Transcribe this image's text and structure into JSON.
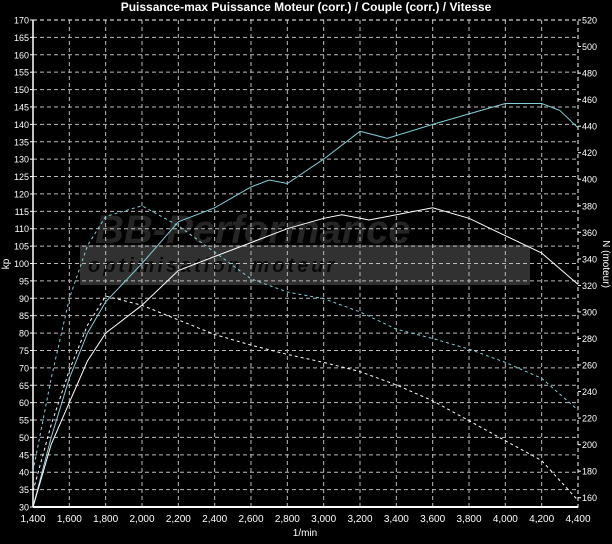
{
  "chart_data": {
    "type": "line",
    "title": "Puissance-max Puissance Moteur (corr.) / Couple (corr.) / Vitesse",
    "xlabel": "1/min",
    "ylabel": "kp",
    "ylabel_right": "N (moteur)",
    "xlim": [
      1400,
      4400
    ],
    "ylim": [
      30,
      170
    ],
    "ylim_right": [
      153,
      520
    ],
    "x_ticks": [
      1400,
      1600,
      1800,
      2000,
      2200,
      2400,
      2600,
      2800,
      3000,
      3200,
      3400,
      3600,
      3800,
      4000,
      4200,
      4400
    ],
    "x_tick_labels": [
      "1,400",
      "1,600",
      "1,800",
      "2,000",
      "2,200",
      "2,400",
      "2,600",
      "2,800",
      "3,000",
      "3,200",
      "3,400",
      "3,600",
      "3,800",
      "4,000",
      "4,200",
      "4,400"
    ],
    "y_ticks": [
      30,
      35,
      40,
      45,
      50,
      55,
      60,
      65,
      70,
      75,
      80,
      85,
      90,
      95,
      100,
      105,
      110,
      115,
      120,
      125,
      130,
      135,
      140,
      145,
      150,
      155,
      160,
      165,
      170
    ],
    "y_ticks_right": [
      160,
      180,
      200,
      220,
      240,
      260,
      280,
      300,
      320,
      340,
      360,
      380,
      400,
      420,
      440,
      460,
      480,
      500,
      520
    ],
    "grid": true,
    "background": "#000000",
    "watermark": {
      "logo_text": "BB-Performance",
      "tagline": "optimisation moteur"
    },
    "series": [
      {
        "axis": "left",
        "style": "solid",
        "color": "#7fd0d8",
        "x": [
          1400,
          1500,
          1600,
          1700,
          1800,
          2000,
          2200,
          2400,
          2600,
          2700,
          2800,
          3000,
          3200,
          3350,
          3600,
          3800,
          4000,
          4200,
          4300,
          4400
        ],
        "y": [
          30,
          50,
          67,
          80,
          89,
          100,
          112,
          116,
          122,
          124,
          123,
          130,
          138,
          136,
          140,
          143,
          146,
          146,
          144,
          139
        ]
      },
      {
        "axis": "left",
        "style": "solid",
        "color": "#ffffff",
        "x": [
          1400,
          1500,
          1600,
          1700,
          1800,
          2000,
          2200,
          2400,
          2600,
          2800,
          3000,
          3100,
          3250,
          3400,
          3600,
          3800,
          4000,
          4200,
          4400
        ],
        "y": [
          30,
          48,
          60,
          72,
          80,
          88,
          98,
          102,
          106,
          110,
          113,
          114,
          112.5,
          114,
          116,
          113,
          108,
          103,
          94
        ]
      },
      {
        "axis": "right",
        "style": "dashed",
        "color": "#7fd0d8",
        "x": [
          1400,
          1500,
          1600,
          1700,
          1800,
          2000,
          2200,
          2400,
          2600,
          2800,
          3000,
          3200,
          3400,
          3600,
          3800,
          4000,
          4200,
          4400
        ],
        "y": [
          180,
          250,
          310,
          350,
          372,
          380,
          365,
          345,
          325,
          315,
          310,
          300,
          287,
          280,
          272,
          262,
          250,
          226
        ]
      },
      {
        "axis": "right",
        "style": "dashed",
        "color": "#ffffff",
        "x": [
          1400,
          1500,
          1600,
          1700,
          1800,
          2000,
          2200,
          2400,
          2600,
          2800,
          3000,
          3200,
          3400,
          3600,
          3800,
          4000,
          4200,
          4400
        ],
        "y": [
          165,
          215,
          256,
          290,
          312,
          305,
          294,
          283,
          275,
          268,
          262,
          255,
          245,
          233,
          218,
          203,
          188,
          158
        ]
      }
    ]
  }
}
